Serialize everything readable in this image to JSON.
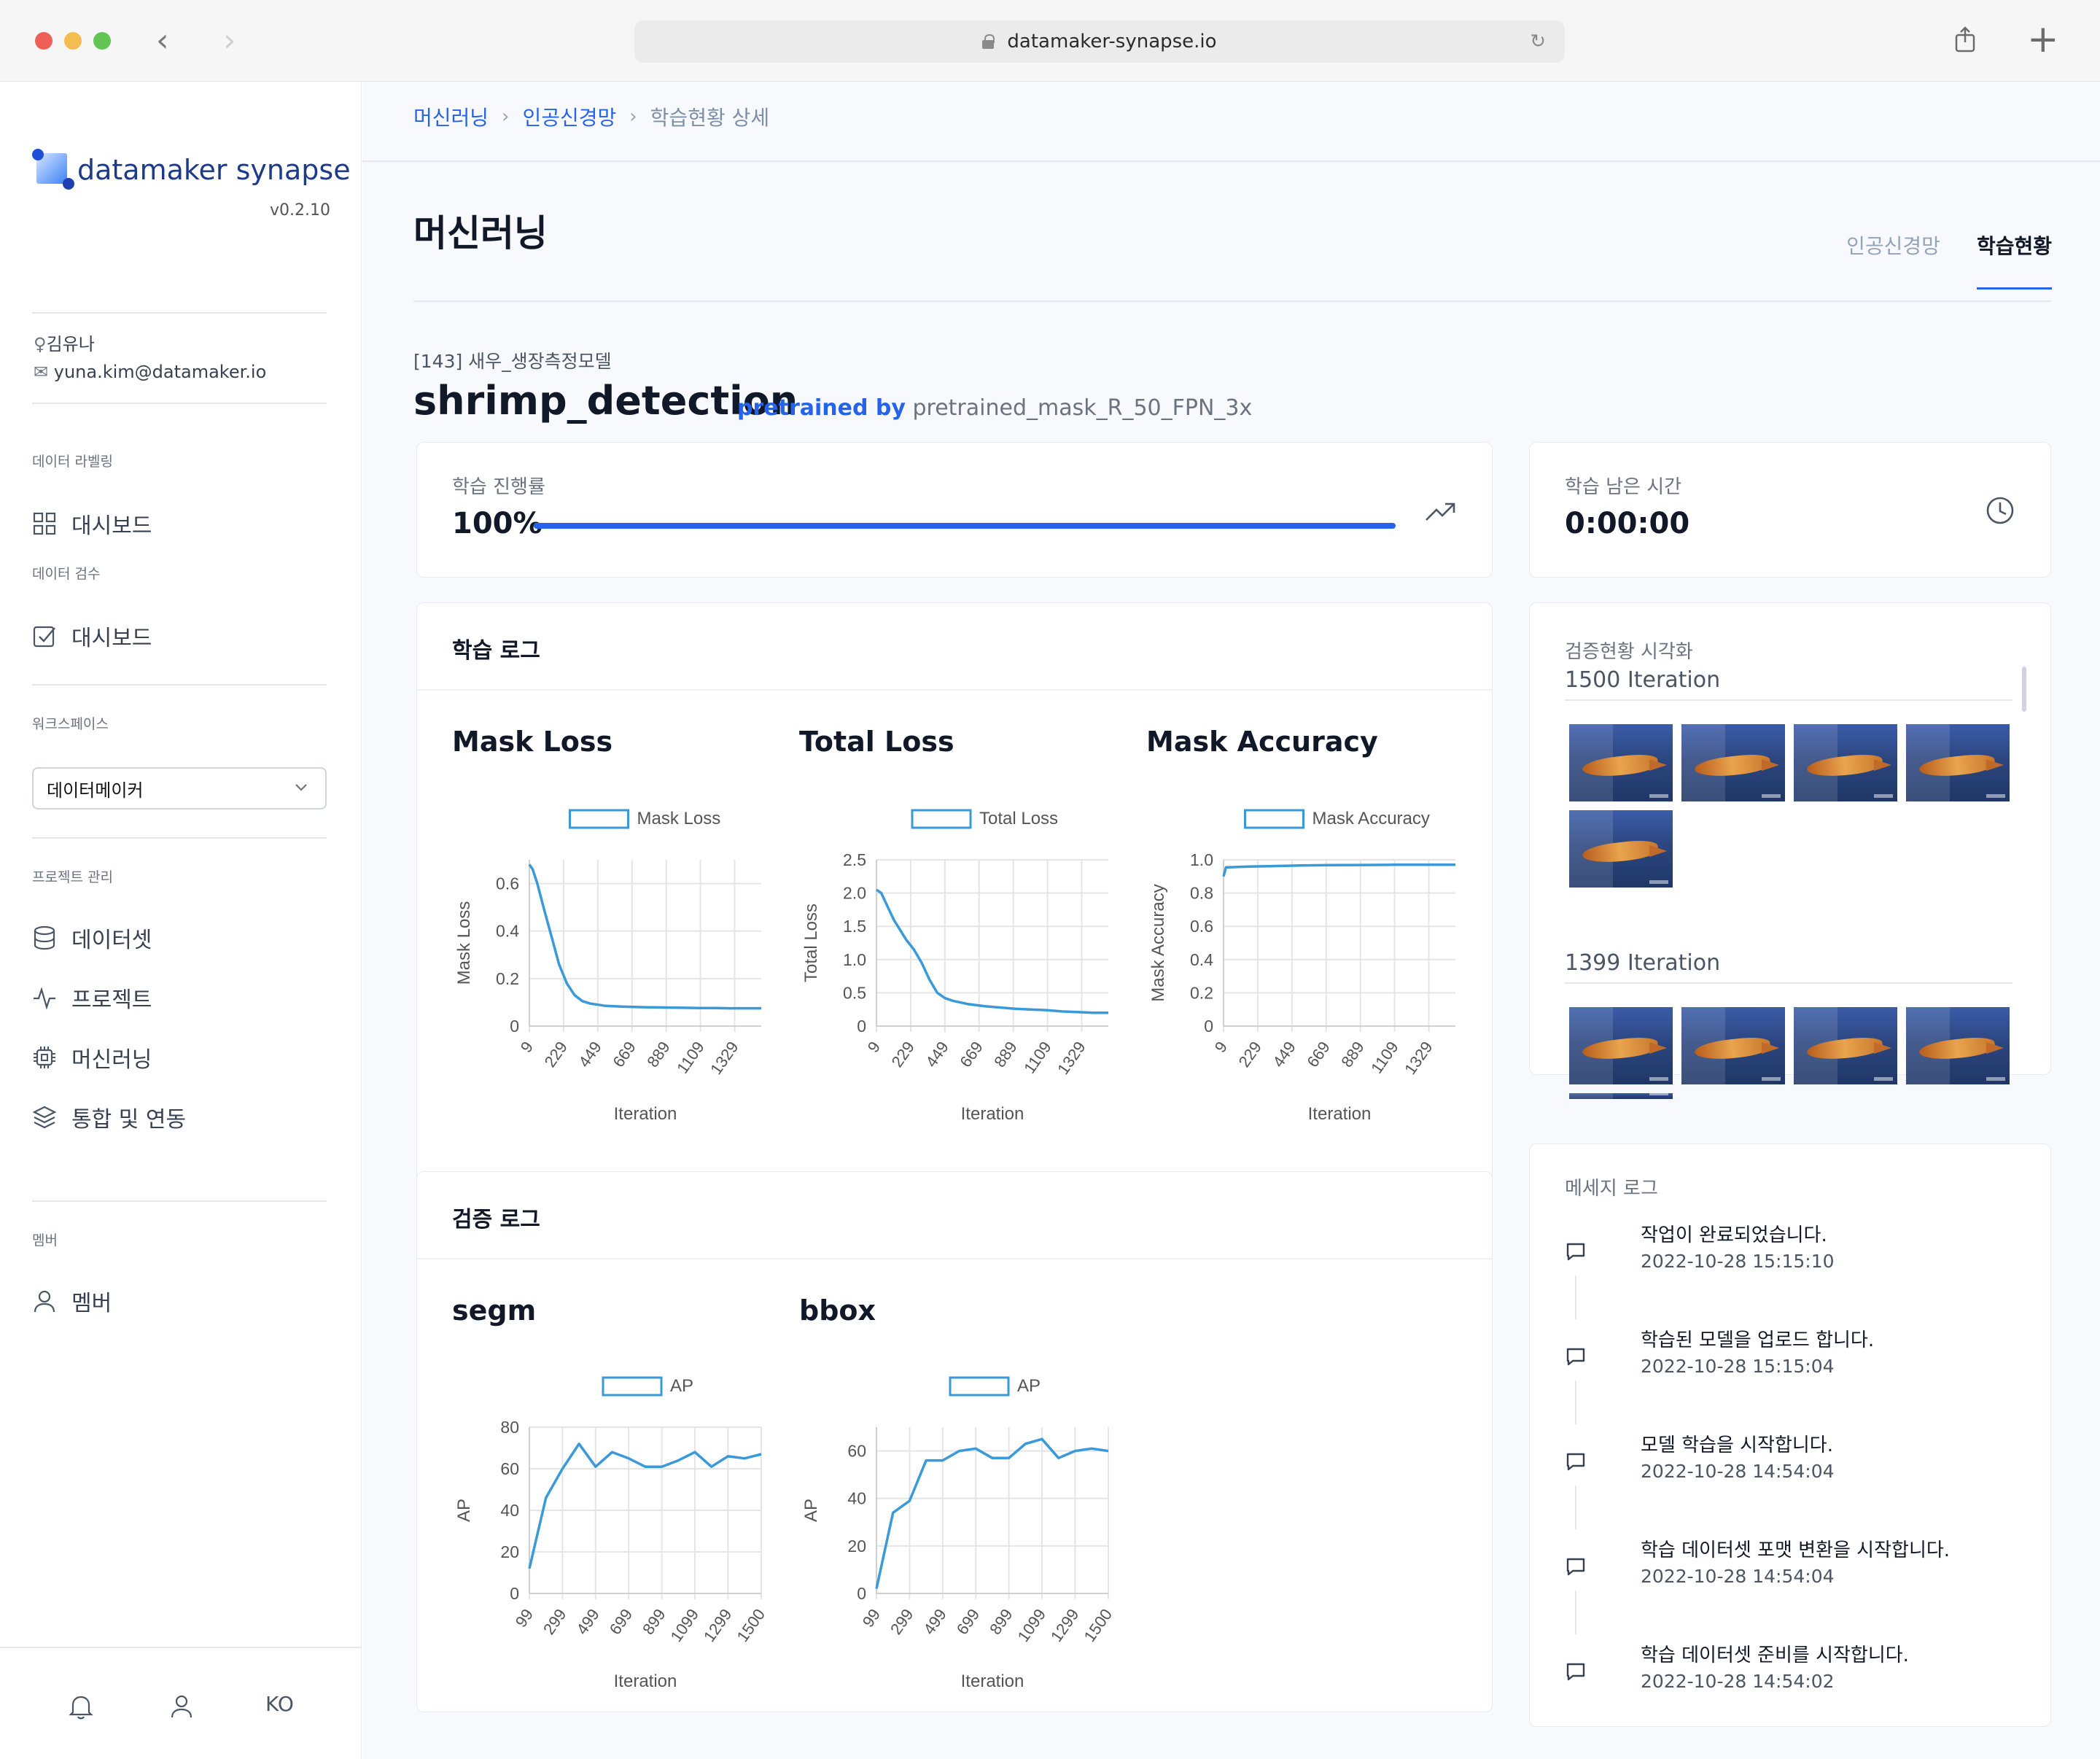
{
  "browser": {
    "url": "datamaker-synapse.io"
  },
  "sidebar": {
    "logo_text": "datamaker synapse",
    "version": "v0.2.10",
    "user_name": "김유나",
    "user_email": "yuna.kim@datamaker.io",
    "section_labeling": "데이터 라벨링",
    "labeling_dashboard": "대시보드",
    "section_review": "데이터 검수",
    "review_dashboard": "대시보드",
    "section_workspace": "워크스페이스",
    "workspace_value": "데이터메이커",
    "section_project": "프로젝트 관리",
    "items": [
      {
        "label": "데이터셋",
        "icon": "database-icon"
      },
      {
        "label": "프로젝트",
        "icon": "activity-icon"
      },
      {
        "label": "머신러닝",
        "icon": "chip-icon"
      },
      {
        "label": "통합 및 연동",
        "icon": "layers-icon"
      }
    ],
    "section_member": "멤버",
    "member_label": "멤버",
    "footer_lang": "KO"
  },
  "breadcrumb": [
    "머신러닝",
    "인공신경망",
    "학습현황 상세"
  ],
  "page": {
    "title": "머신러닝",
    "tabs": [
      "인공신경망",
      "학습현황"
    ],
    "active_tab": "학습현황"
  },
  "model": {
    "id_label": "[143] 새우_생장측정모델",
    "name": "shrimp_detection",
    "pretrained_by": "pretrained by",
    "pretrained_model": "pretrained_mask_R_50_FPN_3x"
  },
  "progress": {
    "label": "학습 진행률",
    "value": "100%",
    "fraction": 1.0
  },
  "remaining": {
    "label": "학습 남은 시간",
    "value": "0:00:00"
  },
  "train_log": {
    "title": "학습 로그"
  },
  "val_log": {
    "title": "검증 로그"
  },
  "viz": {
    "label": "검증현황 시각화",
    "groups": [
      {
        "iteration": "1500 Iteration",
        "count": 5
      },
      {
        "iteration": "1399 Iteration",
        "count": 5
      }
    ]
  },
  "messages": {
    "title": "메세지 로그",
    "items": [
      {
        "text": "작업이 완료되었습니다.",
        "time": "2022-10-28 15:15:10"
      },
      {
        "text": "학습된 모델을 업로드 합니다.",
        "time": "2022-10-28 15:15:04"
      },
      {
        "text": "모델 학습을 시작합니다.",
        "time": "2022-10-28 14:54:04"
      },
      {
        "text": "학습 데이터셋 포맷 변환을 시작합니다.",
        "time": "2022-10-28 14:54:04"
      },
      {
        "text": "학습 데이터셋 준비를 시작합니다.",
        "time": "2022-10-28 14:54:02"
      }
    ]
  },
  "colors": {
    "accent": "#2563eb",
    "series": "#3a9ad9"
  },
  "chart_data": [
    {
      "type": "line",
      "title": "Mask Loss",
      "legend": "Mask Loss",
      "xlabel": "Iteration",
      "ylabel": "Mask Loss",
      "x_ticks": [
        "9",
        "229",
        "449",
        "669",
        "889",
        "1109",
        "1329"
      ],
      "y_ticks": [
        "0",
        "0.2",
        "0.4",
        "0.6"
      ],
      "xlim": [
        9,
        1500
      ],
      "ylim": [
        0,
        0.7
      ],
      "x": [
        9,
        30,
        60,
        100,
        150,
        200,
        250,
        300,
        350,
        400,
        450,
        500,
        600,
        700,
        800,
        900,
        1000,
        1100,
        1200,
        1300,
        1400,
        1500
      ],
      "y": [
        0.68,
        0.66,
        0.6,
        0.5,
        0.38,
        0.26,
        0.18,
        0.13,
        0.105,
        0.095,
        0.09,
        0.085,
        0.082,
        0.08,
        0.079,
        0.078,
        0.077,
        0.076,
        0.076,
        0.075,
        0.075,
        0.075
      ]
    },
    {
      "type": "line",
      "title": "Total Loss",
      "legend": "Total Loss",
      "xlabel": "Iteration",
      "ylabel": "Total Loss",
      "x_ticks": [
        "9",
        "229",
        "449",
        "669",
        "889",
        "1109",
        "1329"
      ],
      "y_ticks": [
        "0",
        "0.5",
        "1.0",
        "1.5",
        "2.0",
        "2.5"
      ],
      "xlim": [
        9,
        1500
      ],
      "ylim": [
        0,
        2.5
      ],
      "x": [
        9,
        40,
        80,
        120,
        160,
        200,
        250,
        300,
        350,
        400,
        450,
        500,
        600,
        700,
        800,
        900,
        1000,
        1100,
        1200,
        1300,
        1400,
        1500
      ],
      "y": [
        2.05,
        2.0,
        1.8,
        1.6,
        1.45,
        1.3,
        1.15,
        0.95,
        0.7,
        0.5,
        0.42,
        0.38,
        0.33,
        0.3,
        0.28,
        0.26,
        0.25,
        0.24,
        0.22,
        0.21,
        0.2,
        0.2
      ]
    },
    {
      "type": "line",
      "title": "Mask Accuracy",
      "legend": "Mask Accuracy",
      "xlabel": "Iteration",
      "ylabel": "Mask Accuracy",
      "x_ticks": [
        "9",
        "229",
        "449",
        "669",
        "889",
        "1109",
        "1329"
      ],
      "y_ticks": [
        "0",
        "0.2",
        "0.4",
        "0.6",
        "0.8",
        "1.0"
      ],
      "xlim": [
        9,
        1500
      ],
      "ylim": [
        0,
        1.0
      ],
      "x": [
        9,
        25,
        50,
        100,
        200,
        300,
        400,
        500,
        700,
        900,
        1100,
        1300,
        1500
      ],
      "y": [
        0.9,
        0.955,
        0.955,
        0.957,
        0.96,
        0.962,
        0.964,
        0.966,
        0.968,
        0.969,
        0.97,
        0.97,
        0.97
      ]
    },
    {
      "type": "line",
      "title": "segm",
      "legend": "AP",
      "xlabel": "Iteration",
      "ylabel": "AP",
      "x_ticks": [
        "99",
        "299",
        "499",
        "699",
        "899",
        "1099",
        "1299",
        "1500"
      ],
      "y_ticks": [
        "0",
        "20",
        "40",
        "60",
        "80"
      ],
      "xlim": [
        99,
        1500
      ],
      "ylim": [
        0,
        80
      ],
      "x": [
        99,
        199,
        299,
        399,
        499,
        599,
        699,
        799,
        899,
        999,
        1099,
        1199,
        1299,
        1399,
        1500
      ],
      "y": [
        12,
        46,
        60,
        72,
        61,
        68,
        65,
        61,
        61,
        64,
        68,
        61,
        66,
        65,
        67
      ]
    },
    {
      "type": "line",
      "title": "bbox",
      "legend": "AP",
      "xlabel": "Iteration",
      "ylabel": "AP",
      "x_ticks": [
        "99",
        "299",
        "499",
        "699",
        "899",
        "1099",
        "1299",
        "1500"
      ],
      "y_ticks": [
        "0",
        "20",
        "40",
        "60"
      ],
      "xlim": [
        99,
        1500
      ],
      "ylim": [
        0,
        70
      ],
      "x": [
        99,
        199,
        299,
        399,
        499,
        599,
        699,
        799,
        899,
        999,
        1099,
        1199,
        1299,
        1399,
        1500
      ],
      "y": [
        2,
        34,
        39,
        56,
        56,
        60,
        61,
        57,
        57,
        63,
        65,
        57,
        60,
        61,
        60
      ]
    }
  ]
}
